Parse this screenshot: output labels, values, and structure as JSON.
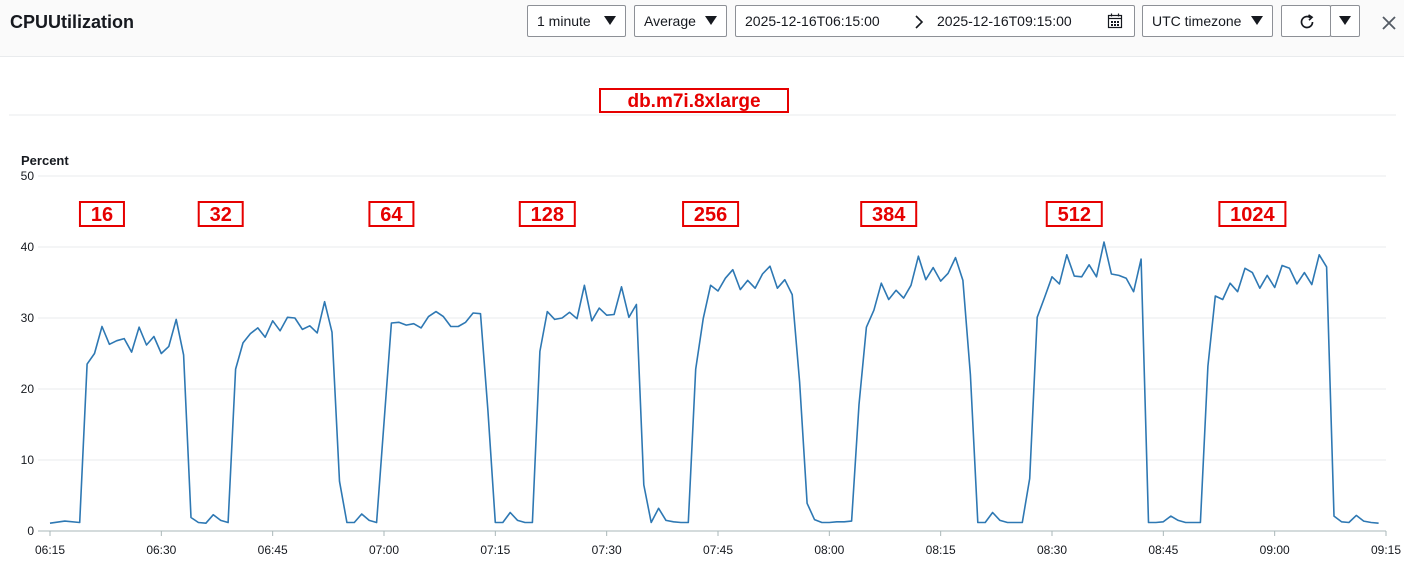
{
  "header": {
    "title": "CPUUtilization",
    "period": "1 minute",
    "statistic": "Average",
    "start": "2025-12-16T06:15:00",
    "end": "2025-12-16T09:15:00",
    "timezone": "UTC timezone"
  },
  "colors": {
    "line": "#2e78b3",
    "annotation": "#e60000",
    "grid": "#e9ebed"
  },
  "chart_data": {
    "type": "line",
    "title": "db.m7i.8xlarge",
    "ylabel": "Percent",
    "ylim": [
      0,
      50
    ],
    "yticks": [
      0,
      10,
      20,
      30,
      40,
      50
    ],
    "xlim": [
      "06:15",
      "09:15"
    ],
    "xticks": [
      "06:15",
      "06:30",
      "06:45",
      "07:00",
      "07:15",
      "07:30",
      "07:45",
      "08:00",
      "08:15",
      "08:30",
      "08:45",
      "09:00",
      "09:15"
    ],
    "grid": "horizontal",
    "annotations": [
      {
        "text": "16",
        "x": "06:22"
      },
      {
        "text": "32",
        "x": "06:38"
      },
      {
        "text": "64",
        "x": "07:01"
      },
      {
        "text": "128",
        "x": "07:22"
      },
      {
        "text": "256",
        "x": "07:44"
      },
      {
        "text": "384",
        "x": "08:08"
      },
      {
        "text": "512",
        "x": "08:33"
      },
      {
        "text": "1024",
        "x": "08:57"
      }
    ],
    "series": [
      {
        "x": [
          "06:15",
          "06:17",
          "06:19",
          "06:20",
          "06:21",
          "06:22",
          "06:23",
          "06:24",
          "06:25",
          "06:26",
          "06:27",
          "06:28",
          "06:29",
          "06:30",
          "06:31",
          "06:32",
          "06:33",
          "06:34",
          "06:35",
          "06:36",
          "06:37",
          "06:38",
          "06:39",
          "06:40",
          "06:41",
          "06:42",
          "06:43",
          "06:44",
          "06:45",
          "06:46",
          "06:47",
          "06:48",
          "06:49",
          "06:50",
          "06:51",
          "06:52",
          "06:53",
          "06:54",
          "06:55",
          "06:56",
          "06:57",
          "06:58",
          "06:59",
          "07:01",
          "07:02",
          "07:03",
          "07:04",
          "07:05",
          "07:06",
          "07:07",
          "07:08",
          "07:09",
          "07:10",
          "07:11",
          "07:12",
          "07:13",
          "07:14",
          "07:15",
          "07:16",
          "07:17",
          "07:18",
          "07:19",
          "07:20",
          "07:21",
          "07:22",
          "07:23",
          "07:24",
          "07:25",
          "07:26",
          "07:27",
          "07:28",
          "07:29",
          "07:30",
          "07:31",
          "07:32",
          "07:33",
          "07:34",
          "07:35",
          "07:36",
          "07:37",
          "07:38",
          "07:39",
          "07:40",
          "07:41",
          "07:42",
          "07:43",
          "07:44",
          "07:45",
          "07:46",
          "07:47",
          "07:48",
          "07:49",
          "07:50",
          "07:51",
          "07:52",
          "07:53",
          "07:54",
          "07:55",
          "07:56",
          "07:57",
          "07:58",
          "07:59",
          "08:00",
          "08:01",
          "08:02",
          "08:03",
          "08:04",
          "08:05",
          "08:06",
          "08:07",
          "08:08",
          "08:09",
          "08:10",
          "08:11",
          "08:12",
          "08:13",
          "08:14",
          "08:15",
          "08:16",
          "08:17",
          "08:18",
          "08:19",
          "08:20",
          "08:21",
          "08:22",
          "08:23",
          "08:24",
          "08:25",
          "08:26",
          "08:27",
          "08:28",
          "08:29",
          "08:30",
          "08:31",
          "08:32",
          "08:33",
          "08:34",
          "08:35",
          "08:36",
          "08:37",
          "08:38",
          "08:39",
          "08:40",
          "08:41",
          "08:42",
          "08:43",
          "08:44",
          "08:45",
          "08:46",
          "08:47",
          "08:48",
          "08:49",
          "08:50",
          "08:51",
          "08:52",
          "08:53",
          "08:54",
          "08:55",
          "08:56",
          "08:57",
          "08:58",
          "08:59",
          "09:00",
          "09:01",
          "09:02",
          "09:03",
          "09:04",
          "09:05",
          "09:06",
          "09:07",
          "09:08",
          "09:09",
          "09:10",
          "09:11",
          "09:12",
          "09:13",
          "09:14"
        ],
        "values": [
          1.1,
          1.4,
          1.2,
          23.5,
          25,
          28.8,
          26.3,
          26.8,
          27.1,
          25.2,
          28.7,
          26.2,
          27.4,
          25,
          26,
          29.8,
          24.8,
          1.9,
          1.2,
          1.1,
          2.3,
          1.5,
          1.2,
          22.8,
          26.5,
          27.8,
          28.6,
          27.3,
          29.6,
          28.2,
          30.1,
          30,
          28.4,
          28.9,
          27.9,
          32.3,
          28,
          7,
          1.2,
          1.2,
          2.4,
          1.5,
          1.2,
          29.3,
          29.4,
          29,
          29.2,
          28.6,
          30.2,
          30.9,
          30.2,
          28.8,
          28.8,
          29.4,
          30.7,
          30.6,
          17,
          1.2,
          1.2,
          2.6,
          1.5,
          1.2,
          1.2,
          25.3,
          30.9,
          29.8,
          30,
          30.8,
          29.9,
          34.6,
          29.6,
          31.4,
          30.4,
          30.5,
          34.4,
          30.1,
          31.9,
          6.5,
          1.2,
          3.2,
          1.5,
          1.3,
          1.2,
          1.2,
          22.8,
          29.9,
          34.6,
          33.8,
          35.6,
          36.8,
          34,
          35.3,
          34.2,
          36.2,
          37.3,
          34.2,
          35.4,
          33.3,
          21,
          3.9,
          1.6,
          1.2,
          1.2,
          1.3,
          1.3,
          1.4,
          17.8,
          28.7,
          31.1,
          34.9,
          32.6,
          33.9,
          32.8,
          34.6,
          38.7,
          35.4,
          37.1,
          35.2,
          36.3,
          38.5,
          35.3,
          22,
          1.2,
          1.2,
          2.6,
          1.5,
          1.2,
          1.2,
          1.2,
          7.4,
          30.1,
          32.9,
          35.8,
          34.8,
          38.9,
          35.9,
          35.8,
          37.5,
          35.8,
          40.7,
          36.2,
          36,
          35.6,
          33.7,
          38.3,
          1.2,
          1.2,
          1.3,
          2.1,
          1.5,
          1.2,
          1.2,
          1.2,
          23.2,
          33.1,
          32.6,
          34.9,
          33.7,
          37,
          36.4,
          34.2,
          36,
          34.3,
          37.4,
          37,
          34.8,
          36.4,
          34.7,
          38.9,
          37.2,
          2.1,
          1.3,
          1.2,
          2.2,
          1.4,
          1.2,
          1.1
        ]
      }
    ]
  }
}
